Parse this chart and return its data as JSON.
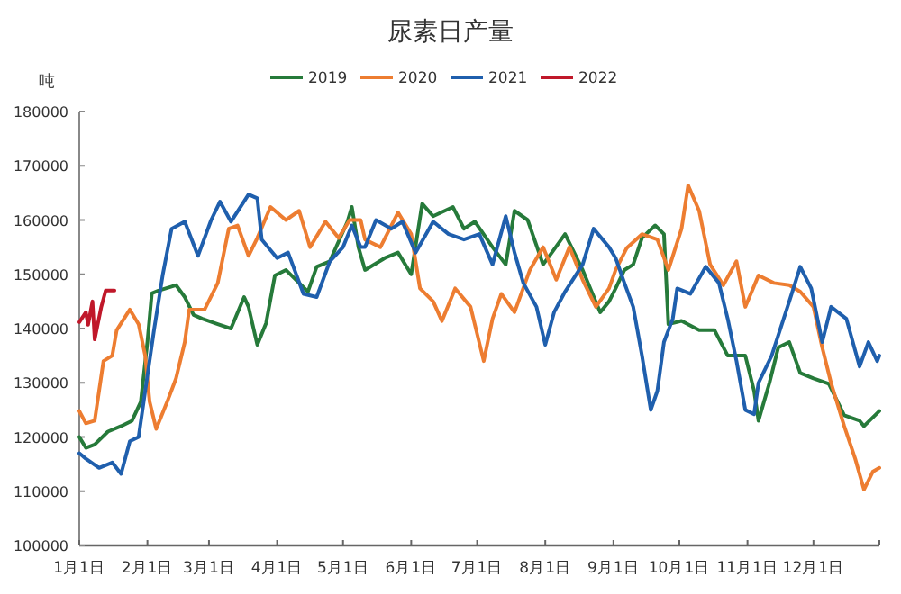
{
  "chart_data": {
    "type": "line",
    "title": "尿素日产量",
    "ylabel": "吨",
    "legend": "top",
    "xlim": [
      "--01-01",
      "--12-31"
    ],
    "ylim": [
      100000,
      180000
    ],
    "xticks": [
      {
        "value": "--01-01",
        "label": "1月1日"
      },
      {
        "value": "--02-01",
        "label": "2月1日"
      },
      {
        "value": "--03-01",
        "label": "3月1日"
      },
      {
        "value": "--04-01",
        "label": "4月1日"
      },
      {
        "value": "--05-01",
        "label": "5月1日"
      },
      {
        "value": "--06-01",
        "label": "6月1日"
      },
      {
        "value": "--07-01",
        "label": "7月1日"
      },
      {
        "value": "--08-01",
        "label": "8月1日"
      },
      {
        "value": "--09-01",
        "label": "9月1日"
      },
      {
        "value": "--10-01",
        "label": "10月1日"
      },
      {
        "value": "--11-01",
        "label": "11月1日"
      },
      {
        "value": "--12-01",
        "label": "12月1日"
      },
      {
        "value": "--12-31",
        "label": null
      }
    ],
    "yticks": [
      100000,
      110000,
      120000,
      130000,
      140000,
      150000,
      160000,
      170000,
      180000
    ],
    "series": [
      {
        "name": "2019",
        "color": "#267a3a",
        "x": [
          "--01-01",
          "--01-04",
          "--01-08",
          "--01-14",
          "--01-20",
          "--01-25",
          "--01-29",
          "--02-01",
          "--02-03",
          "--02-06",
          "--02-14",
          "--02-18",
          "--02-22",
          "--02-26",
          "--03-05",
          "--03-11",
          "--03-17",
          "--03-19",
          "--03-23",
          "--03-27",
          "--03-31",
          "--04-05",
          "--04-11",
          "--04-15",
          "--04-19",
          "--04-25",
          "--05-03",
          "--05-05",
          "--05-08",
          "--05-11",
          "--05-20",
          "--05-26",
          "--06-01",
          "--06-06",
          "--06-11",
          "--06-20",
          "--06-25",
          "--06-30",
          "--07-08",
          "--07-14",
          "--07-18",
          "--07-24",
          "--07-31",
          "--08-04",
          "--08-10",
          "--08-18",
          "--08-26",
          "--08-30",
          "--09-02",
          "--09-06",
          "--09-10",
          "--09-14",
          "--09-20",
          "--09-24",
          "--09-26",
          "--10-02",
          "--10-10",
          "--10-17",
          "--10-23",
          "--10-31",
          "--11-04",
          "--11-06",
          "--11-11",
          "--11-15",
          "--11-20",
          "--11-25",
          "--12-01",
          "--12-08",
          "--12-15",
          "--12-22",
          "--12-24",
          "--12-31"
        ],
        "values": [
          120000,
          118000,
          118600,
          121000,
          122000,
          123000,
          126500,
          137500,
          146500,
          147000,
          148000,
          145800,
          142500,
          141800,
          140800,
          140000,
          145800,
          144000,
          137000,
          141000,
          149800,
          150800,
          148400,
          146800,
          151400,
          152400,
          159700,
          162400,
          155000,
          150800,
          153000,
          154000,
          150000,
          163000,
          160700,
          162400,
          158400,
          159700,
          155000,
          151800,
          161700,
          160000,
          151800,
          154000,
          157400,
          150800,
          143000,
          145000,
          147400,
          150800,
          151800,
          156700,
          159000,
          157400,
          140800,
          141400,
          139700,
          139700,
          135000,
          135000,
          128500,
          123000,
          130000,
          136500,
          137500,
          131800,
          130800,
          129800,
          124000,
          123000,
          122000,
          124800
        ]
      },
      {
        "name": "2020",
        "color": "#ed7d31",
        "x": [
          "--01-01",
          "--01-04",
          "--01-08",
          "--01-12",
          "--01-16",
          "--01-18",
          "--01-24",
          "--01-28",
          "--01-31",
          "--02-02",
          "--02-05",
          "--02-10",
          "--02-14",
          "--02-18",
          "--02-20",
          "--02-27",
          "--03-05",
          "--03-10",
          "--03-14",
          "--03-19",
          "--03-23",
          "--03-29",
          "--04-05",
          "--04-11",
          "--04-16",
          "--04-23",
          "--04-29",
          "--05-04",
          "--05-09",
          "--05-11",
          "--05-18",
          "--05-26",
          "--06-01",
          "--06-05",
          "--06-11",
          "--06-15",
          "--06-21",
          "--06-28",
          "--07-04",
          "--07-08",
          "--07-12",
          "--07-18",
          "--07-25",
          "--07-31",
          "--08-06",
          "--08-12",
          "--08-18",
          "--08-24",
          "--08-30",
          "--09-02",
          "--09-07",
          "--09-14",
          "--09-21",
          "--09-26",
          "--10-02",
          "--10-05",
          "--10-10",
          "--10-15",
          "--10-21",
          "--10-27",
          "--10-31",
          "--11-06",
          "--11-13",
          "--11-20",
          "--11-25",
          "--12-01",
          "--12-05",
          "--12-09",
          "--12-15",
          "--12-20",
          "--12-24",
          "--12-28",
          "--12-31"
        ],
        "values": [
          124800,
          122500,
          123000,
          134000,
          135000,
          139700,
          143500,
          140800,
          135000,
          126500,
          121500,
          126500,
          130800,
          137500,
          143500,
          143500,
          148400,
          158400,
          159000,
          153400,
          156700,
          162400,
          160000,
          161700,
          155000,
          159700,
          156700,
          160000,
          160000,
          156400,
          155000,
          161400,
          157400,
          147400,
          145000,
          141400,
          147400,
          144000,
          134000,
          141800,
          146400,
          143000,
          150800,
          155000,
          149000,
          155000,
          149000,
          144000,
          147400,
          150800,
          154800,
          157400,
          156400,
          150800,
          158400,
          166400,
          161700,
          151800,
          148000,
          152400,
          144000,
          149800,
          148400,
          148000,
          146800,
          144000,
          136500,
          130000,
          122000,
          116000,
          110300,
          113600,
          114300
        ]
      },
      {
        "name": "2021",
        "color": "#1f5fad",
        "x": [
          "--01-01",
          "--01-04",
          "--01-10",
          "--01-16",
          "--01-20",
          "--01-24",
          "--01-28",
          "--01-31",
          "--02-04",
          "--02-08",
          "--02-12",
          "--02-18",
          "--02-24",
          "--03-02",
          "--03-06",
          "--03-11",
          "--03-19",
          "--03-23",
          "--03-25",
          "--04-01",
          "--04-06",
          "--04-13",
          "--04-19",
          "--04-25",
          "--05-01",
          "--05-05",
          "--05-09",
          "--05-11",
          "--05-16",
          "--05-23",
          "--05-28",
          "--06-03",
          "--06-11",
          "--06-18",
          "--06-25",
          "--07-02",
          "--07-08",
          "--07-14",
          "--07-18",
          "--07-22",
          "--07-28",
          "--08-01",
          "--08-05",
          "--08-10",
          "--08-18",
          "--08-23",
          "--08-30",
          "--09-02",
          "--09-06",
          "--09-10",
          "--09-14",
          "--09-18",
          "--09-21",
          "--09-24",
          "--09-28",
          "--09-30",
          "--10-06",
          "--10-13",
          "--10-19",
          "--10-23",
          "--10-27",
          "--10-31",
          "--11-04",
          "--11-06",
          "--11-12",
          "--11-20",
          "--11-25",
          "--11-30",
          "--12-05",
          "--12-09",
          "--12-16",
          "--12-22",
          "--12-26",
          "--12-30",
          "--12-31"
        ],
        "values": [
          117000,
          116000,
          114300,
          115300,
          113200,
          119200,
          120000,
          128500,
          139700,
          150000,
          158400,
          159700,
          153400,
          160000,
          163400,
          159700,
          164700,
          164000,
          156400,
          153000,
          154000,
          146400,
          145800,
          152400,
          155000,
          159000,
          155000,
          155000,
          160000,
          158400,
          159700,
          154000,
          159700,
          157400,
          156400,
          157400,
          151800,
          160700,
          154000,
          148400,
          144000,
          137000,
          143000,
          146800,
          151800,
          158400,
          155000,
          153000,
          148400,
          144000,
          135000,
          125000,
          128500,
          137500,
          141800,
          147400,
          146400,
          151400,
          148400,
          141800,
          134000,
          125000,
          124200,
          130000,
          135000,
          145000,
          151400,
          147400,
          137500,
          144000,
          141800,
          133000,
          137500,
          134000,
          135000
        ]
      },
      {
        "name": "2022",
        "color": "#c0182a",
        "x": [
          "--01-01",
          "--01-04",
          "--01-05",
          "--01-07",
          "--01-08",
          "--01-11",
          "--01-13",
          "--01-17"
        ],
        "values": [
          141200,
          143000,
          140700,
          145000,
          138000,
          144000,
          147000,
          147000
        ]
      }
    ]
  }
}
